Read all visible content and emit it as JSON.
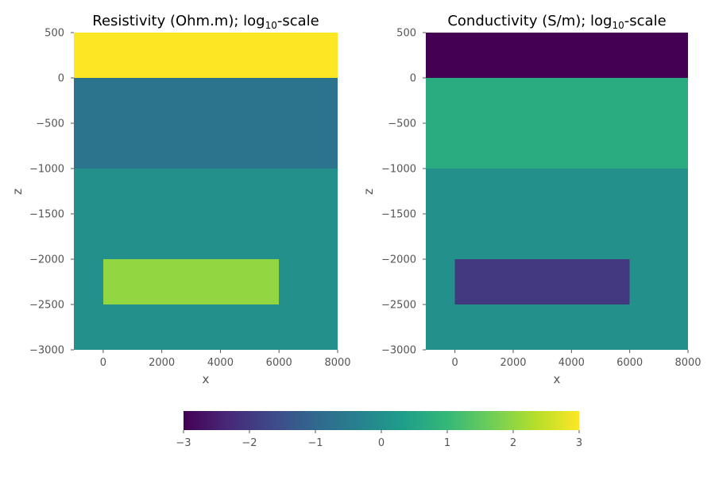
{
  "chart_data": {
    "figure_colorbar": {
      "orientation": "horizontal",
      "placement": "bottom-center",
      "colormap": "viridis",
      "range": [
        -3,
        3
      ],
      "ticks": [
        -3,
        -2,
        -1,
        0,
        1,
        2,
        3
      ],
      "tick_labels": [
        "−3",
        "−2",
        "−1",
        "0",
        "1",
        "2",
        "3"
      ]
    },
    "panels": [
      {
        "type": "heatmap",
        "title_main": "Resistivity (Ohm.m); log",
        "title_sub": "10",
        "title_tail": "-scale",
        "xlabel": "x",
        "ylabel": "z",
        "xlim": [
          -1000,
          8000
        ],
        "ylim": [
          -3000,
          500
        ],
        "xticks": [
          0,
          2000,
          4000,
          6000,
          8000
        ],
        "xtick_labels": [
          "0",
          "2000",
          "4000",
          "6000",
          "8000"
        ],
        "yticks": [
          500,
          0,
          -500,
          -1000,
          -1500,
          -2000,
          -2500,
          -3000
        ],
        "ytick_labels": [
          "500",
          "0",
          "−500",
          "−1000",
          "−1500",
          "−2000",
          "−2500",
          "−3000"
        ],
        "grid": false,
        "regions": [
          {
            "name": "air",
            "x": [
              -1000,
              8000
            ],
            "z": [
              0,
              500
            ],
            "value": 3
          },
          {
            "name": "layer-1",
            "x": [
              -1000,
              8000
            ],
            "z": [
              -1000,
              0
            ],
            "value": -0.7
          },
          {
            "name": "background",
            "x": [
              -1000,
              8000
            ],
            "z": [
              -3000,
              -1000
            ],
            "value": 0
          },
          {
            "name": "block",
            "x": [
              0,
              6000
            ],
            "z": [
              -2500,
              -2000
            ],
            "value": 2
          }
        ]
      },
      {
        "type": "heatmap",
        "title_main": "Conductivity (S/m); log",
        "title_sub": "10",
        "title_tail": "-scale",
        "xlabel": "x",
        "ylabel": "z",
        "xlim": [
          -1000,
          8000
        ],
        "ylim": [
          -3000,
          500
        ],
        "xticks": [
          0,
          2000,
          4000,
          6000,
          8000
        ],
        "xtick_labels": [
          "0",
          "2000",
          "4000",
          "6000",
          "8000"
        ],
        "yticks": [
          500,
          0,
          -500,
          -1000,
          -1500,
          -2000,
          -2500,
          -3000
        ],
        "ytick_labels": [
          "500",
          "0",
          "−500",
          "−1000",
          "−1500",
          "−2000",
          "−2500",
          "−3000"
        ],
        "grid": false,
        "regions": [
          {
            "name": "air",
            "x": [
              -1000,
              8000
            ],
            "z": [
              0,
              500
            ],
            "value": -3
          },
          {
            "name": "layer-1",
            "x": [
              -1000,
              8000
            ],
            "z": [
              -1000,
              0
            ],
            "value": 0.7
          },
          {
            "name": "background",
            "x": [
              -1000,
              8000
            ],
            "z": [
              -3000,
              -1000
            ],
            "value": 0
          },
          {
            "name": "block",
            "x": [
              0,
              6000
            ],
            "z": [
              -2500,
              -2000
            ],
            "value": -2
          }
        ]
      }
    ]
  },
  "colors": {
    "viridis_stops": [
      "#440154",
      "#482878",
      "#3e4989",
      "#31688e",
      "#26828e",
      "#1f9e89",
      "#35b779",
      "#6ece58",
      "#b5de2b",
      "#fde725"
    ],
    "tick_line": "#555555",
    "tick_text": "#555555",
    "title_text": "#000000"
  }
}
